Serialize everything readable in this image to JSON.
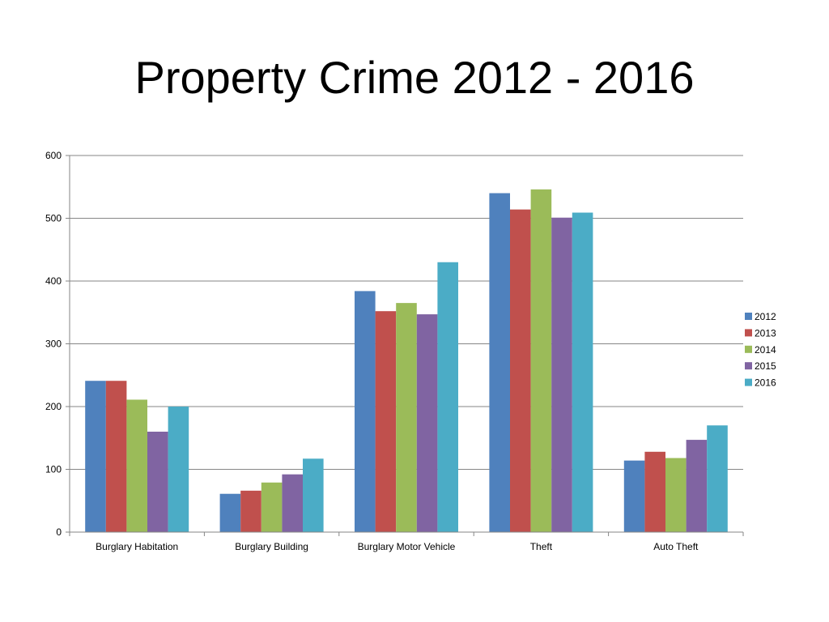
{
  "chart_data": {
    "type": "bar",
    "title": "Property Crime 2012 - 2016",
    "xlabel": "",
    "ylabel": "",
    "ylim": [
      0,
      600
    ],
    "yticks": [
      0,
      100,
      200,
      300,
      400,
      500,
      600
    ],
    "grid": true,
    "legend_position": "right",
    "categories": [
      "Burglary Habitation",
      "Burglary Building",
      "Burglary Motor Vehicle",
      "Theft",
      "Auto Theft"
    ],
    "series": [
      {
        "name": "2012",
        "color": "#4F81BD",
        "values": [
          241,
          61,
          384,
          540,
          114
        ]
      },
      {
        "name": "2013",
        "color": "#C0504D",
        "values": [
          241,
          66,
          352,
          514,
          128
        ]
      },
      {
        "name": "2014",
        "color": "#9BBB59",
        "values": [
          211,
          79,
          365,
          546,
          118
        ]
      },
      {
        "name": "2015",
        "color": "#8064A2",
        "values": [
          160,
          92,
          347,
          501,
          147
        ]
      },
      {
        "name": "2016",
        "color": "#4BACC6",
        "values": [
          200,
          117,
          430,
          509,
          170
        ]
      }
    ]
  }
}
